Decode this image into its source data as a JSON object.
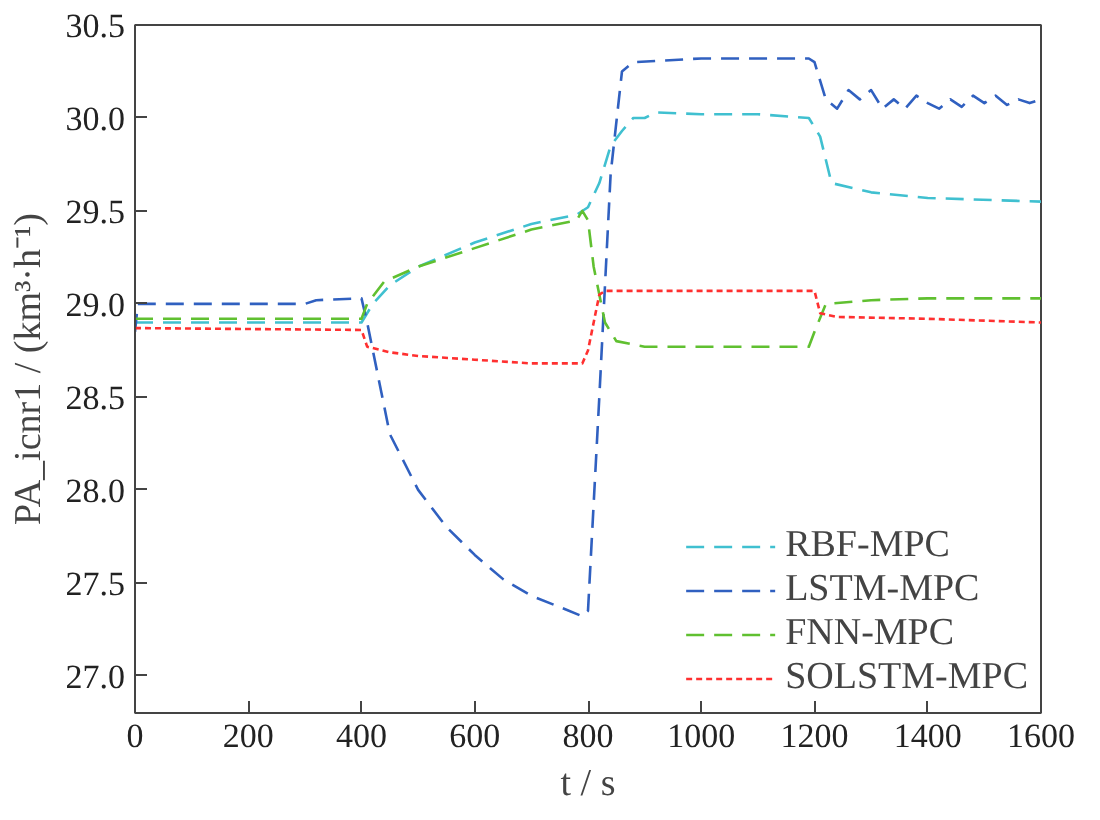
{
  "chart_data": {
    "type": "line",
    "xlabel": "t / s",
    "ylabel": "PA_icnr1 / (km³·h⁻¹)",
    "xlim": [
      0,
      1600
    ],
    "xticks": [
      0,
      200,
      400,
      600,
      800,
      1000,
      1200,
      1400,
      1600
    ],
    "ylim": [
      26.8,
      30.5
    ],
    "yticks": [
      {
        "value": 27,
        "label": "27.0"
      },
      27.5,
      {
        "value": 28,
        "label": "28.0"
      },
      28.5,
      {
        "value": 29,
        "label": "29.0"
      },
      29.5,
      {
        "value": 30,
        "label": "30.0"
      },
      30.5
    ],
    "grid": false,
    "legend": "bottom right",
    "marker": "none",
    "series": [
      {
        "name": "RBF-MPC",
        "color": "#40c0d0",
        "line_style": "dashed",
        "x": [
          0,
          400,
          420,
          450,
          500,
          600,
          700,
          780,
          800,
          820,
          840,
          860,
          880,
          900,
          920,
          1000,
          1100,
          1190,
          1210,
          1230,
          1300,
          1400,
          1600
        ],
        "values": [
          28.9,
          28.9,
          29.0,
          29.1,
          29.2,
          29.33,
          29.43,
          29.48,
          29.52,
          29.65,
          29.85,
          29.93,
          30.0,
          30.0,
          30.03,
          30.02,
          30.02,
          30.0,
          29.9,
          29.65,
          29.6,
          29.57,
          29.55
        ]
      },
      {
        "name": "LSTM-MPC",
        "color": "#3060c0",
        "line_style": "dashed",
        "x": [
          0,
          5,
          300,
          320,
          400,
          410,
          430,
          450,
          500,
          550,
          600,
          650,
          700,
          750,
          790,
          800,
          820,
          840,
          860,
          880,
          1000,
          1190,
          1200,
          1220,
          1240,
          1260,
          1280,
          1300,
          1320,
          1340,
          1360,
          1380,
          1400,
          1420,
          1440,
          1460,
          1480,
          1500,
          1520,
          1540,
          1560,
          1580,
          1600
        ],
        "values": [
          28.85,
          29.0,
          29.0,
          29.02,
          29.03,
          28.9,
          28.6,
          28.3,
          28.0,
          27.8,
          27.65,
          27.52,
          27.43,
          27.37,
          27.32,
          27.35,
          28.5,
          29.7,
          30.25,
          30.3,
          30.32,
          30.32,
          30.3,
          30.1,
          30.05,
          30.15,
          30.1,
          30.15,
          30.05,
          30.1,
          30.05,
          30.12,
          30.08,
          30.05,
          30.1,
          30.06,
          30.12,
          30.08,
          30.12,
          30.07,
          30.1,
          30.08,
          30.1
        ]
      },
      {
        "name": "FNN-MPC",
        "color": "#60c030",
        "line_style": "dashed",
        "x": [
          0,
          400,
          410,
          440,
          500,
          600,
          700,
          780,
          790,
          800,
          810,
          830,
          850,
          900,
          1000,
          1190,
          1200,
          1220,
          1300,
          1400,
          1600
        ],
        "values": [
          28.92,
          28.92,
          29.0,
          29.12,
          29.2,
          29.3,
          29.4,
          29.45,
          29.5,
          29.45,
          29.2,
          28.9,
          28.8,
          28.77,
          28.77,
          28.77,
          28.85,
          29.0,
          29.02,
          29.03,
          29.03
        ]
      },
      {
        "name": "SOLSTM-MPC",
        "color": "#ff3030",
        "line_style": "dotted",
        "x": [
          0,
          400,
          410,
          450,
          500,
          600,
          700,
          790,
          800,
          810,
          820,
          830,
          1200,
          1210,
          1240,
          1400,
          1600
        ],
        "values": [
          28.87,
          28.86,
          28.77,
          28.74,
          28.72,
          28.7,
          28.68,
          28.68,
          28.75,
          28.9,
          29.05,
          29.07,
          29.07,
          28.95,
          28.93,
          28.92,
          28.9
        ]
      }
    ]
  }
}
